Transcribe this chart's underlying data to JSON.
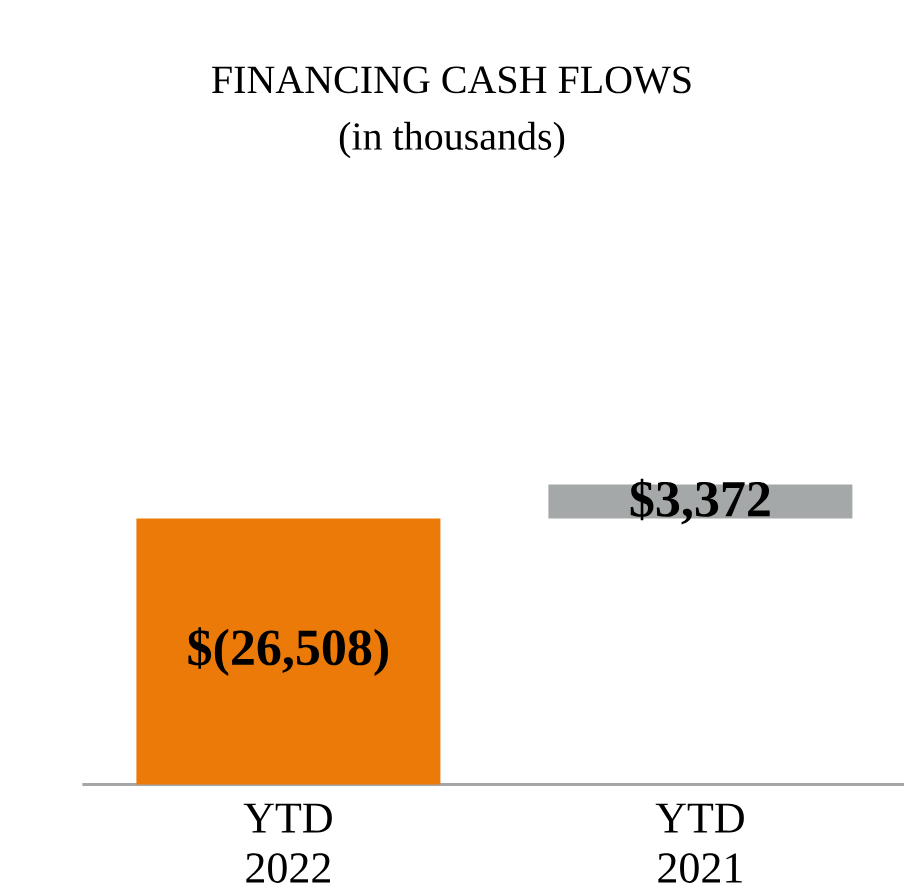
{
  "chart_data": {
    "type": "bar",
    "title": "FINANCING CASH FLOWS",
    "subtitle": "(in thousands)",
    "categories": [
      "YTD 2022",
      "YTD 2021"
    ],
    "values": [
      -26508,
      3372
    ],
    "colors": [
      "#ec7a08",
      "#a5a8a8"
    ],
    "value_labels": [
      "$(26,508)",
      "$3,372"
    ],
    "tick_labels": "x"
  }
}
